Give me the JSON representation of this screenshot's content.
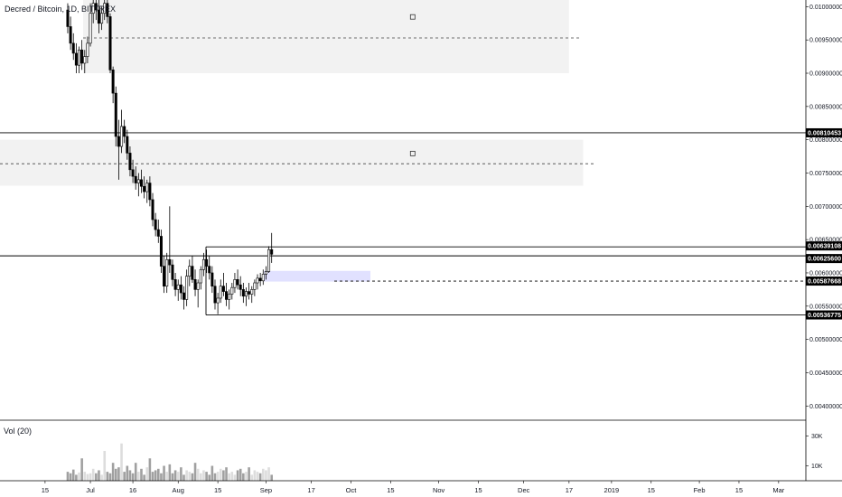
{
  "header": {
    "title": "Decred / Bitcoin, 1D, BITTREX"
  },
  "volume_pane": {
    "label": "Vol (20)"
  },
  "colors": {
    "up": "#ffffff",
    "down": "#000000",
    "zone_fill": "#f2f2f2",
    "box_fill": "#d9d9ff",
    "tag_bg": "#000000"
  },
  "chart_data": {
    "type": "candlestick",
    "symbol": "Decred / Bitcoin",
    "interval": "1D",
    "exchange": "BITTREX",
    "y_axis": {
      "min": 0.0038,
      "max": 0.0101,
      "ticks": [
        "0.01000000",
        "0.00950000",
        "0.00900000",
        "0.00850000",
        "0.00800000",
        "0.00750000",
        "0.00700000",
        "0.00650000",
        "0.00600000",
        "0.00550000",
        "0.00500000",
        "0.00450000",
        "0.00400000"
      ],
      "tick_values": [
        0.01,
        0.0095,
        0.009,
        0.0085,
        0.008,
        0.0075,
        0.007,
        0.0065,
        0.006,
        0.0055,
        0.005,
        0.0045,
        0.004
      ]
    },
    "x_axis": {
      "ticks": [
        "15",
        "Jul",
        "16",
        "Aug",
        "15",
        "Sep",
        "17",
        "Oct",
        "15",
        "Nov",
        "15",
        "Dec",
        "17",
        "2019",
        "15",
        "Feb",
        "15",
        "Mar"
      ],
      "tick_dates": [
        "2018-06-15",
        "2018-07-01",
        "2018-07-16",
        "2018-08-01",
        "2018-08-15",
        "2018-09-01",
        "2018-09-17",
        "2018-10-01",
        "2018-10-15",
        "2018-11-01",
        "2018-11-15",
        "2018-12-01",
        "2018-12-17",
        "2019-01-01",
        "2019-01-15",
        "2019-02-01",
        "2019-02-15",
        "2019-03-01"
      ],
      "first_candle_date": "2018-06-23"
    },
    "price_levels": [
      {
        "value": 0.00810453,
        "label": "0.00810453",
        "style": "solid"
      },
      {
        "value": 0.00639108,
        "label": "0.00639108",
        "style": "solid"
      },
      {
        "value": 0.006256,
        "label": "0.00625600",
        "style": "solid"
      },
      {
        "value": 0.00587668,
        "label": "0.00587668",
        "style": "dashed"
      },
      {
        "value": 0.00536775,
        "label": "0.00536775",
        "style": "solid"
      }
    ],
    "zones": [
      {
        "top": 0.0101,
        "bottom": 0.009,
        "mid": 0.00953,
        "start": "2018-06-23",
        "end": "2018-12-17"
      },
      {
        "top": 0.008,
        "bottom": 0.00731,
        "mid": 0.00764,
        "start": "2018-05-01",
        "end": "2018-12-22"
      }
    ],
    "box": {
      "top": 0.00603,
      "bottom": 0.00587,
      "start": "2018-09-01",
      "end": "2018-10-05"
    },
    "volume_axis": {
      "ticks": [
        "30K",
        "10K"
      ],
      "tick_values": [
        30000,
        10000
      ],
      "max": 40000
    },
    "candles": [
      [
        0.00995,
        0.01005,
        0.0096,
        0.0097
      ],
      [
        0.0097,
        0.00985,
        0.00935,
        0.00945
      ],
      [
        0.00945,
        0.0096,
        0.0092,
        0.0093
      ],
      [
        0.0093,
        0.00945,
        0.009,
        0.00912
      ],
      [
        0.00912,
        0.0094,
        0.009,
        0.00935
      ],
      [
        0.00935,
        0.0095,
        0.00905,
        0.00915
      ],
      [
        0.00915,
        0.00935,
        0.009,
        0.00925
      ],
      [
        0.00925,
        0.00955,
        0.00915,
        0.00945
      ],
      [
        0.00945,
        0.01005,
        0.0094,
        0.0099
      ],
      [
        0.0099,
        0.0102,
        0.00975,
        0.01005
      ],
      [
        0.01005,
        0.0102,
        0.0098,
        0.00995
      ],
      [
        0.00995,
        0.0101,
        0.0096,
        0.00975
      ],
      [
        0.00975,
        0.01,
        0.00965,
        0.0099
      ],
      [
        0.0099,
        0.01015,
        0.0098,
        0.01005
      ],
      [
        0.01005,
        0.0101,
        0.00975,
        0.00985
      ],
      [
        0.00985,
        0.0099,
        0.009,
        0.00905
      ],
      [
        0.00905,
        0.0091,
        0.00855,
        0.0087
      ],
      [
        0.0087,
        0.0088,
        0.0079,
        0.00805
      ],
      [
        0.00805,
        0.0083,
        0.0074,
        0.0079
      ],
      [
        0.0079,
        0.00845,
        0.0078,
        0.0082
      ],
      [
        0.0082,
        0.0083,
        0.00795,
        0.00805
      ],
      [
        0.00805,
        0.00815,
        0.0077,
        0.0078
      ],
      [
        0.0078,
        0.0079,
        0.00745,
        0.00755
      ],
      [
        0.00755,
        0.0077,
        0.00735,
        0.00745
      ],
      [
        0.00745,
        0.0076,
        0.00725,
        0.00735
      ],
      [
        0.00735,
        0.0075,
        0.00715,
        0.0074
      ],
      [
        0.0074,
        0.00755,
        0.0072,
        0.0073
      ],
      [
        0.0073,
        0.00745,
        0.00712,
        0.00722
      ],
      [
        0.00722,
        0.0074,
        0.00705,
        0.00735
      ],
      [
        0.00735,
        0.00745,
        0.007,
        0.0071
      ],
      [
        0.0071,
        0.0072,
        0.0067,
        0.0068
      ],
      [
        0.0068,
        0.0069,
        0.00655,
        0.00665
      ],
      [
        0.00665,
        0.0068,
        0.00645,
        0.00655
      ],
      [
        0.00655,
        0.00665,
        0.006,
        0.0061
      ],
      [
        0.0061,
        0.00625,
        0.0057,
        0.0058
      ],
      [
        0.0058,
        0.0063,
        0.0057,
        0.0062
      ],
      [
        0.0062,
        0.007,
        0.006,
        0.00612
      ],
      [
        0.00612,
        0.0062,
        0.0058,
        0.0059
      ],
      [
        0.0059,
        0.006,
        0.00565,
        0.00575
      ],
      [
        0.00575,
        0.0059,
        0.00558,
        0.00582
      ],
      [
        0.00582,
        0.00595,
        0.0056,
        0.0057
      ],
      [
        0.0057,
        0.0058,
        0.00545,
        0.0056
      ],
      [
        0.0056,
        0.00605,
        0.0055,
        0.00595
      ],
      [
        0.00595,
        0.0062,
        0.0058,
        0.0061
      ],
      [
        0.0061,
        0.00625,
        0.00585,
        0.0059
      ],
      [
        0.0059,
        0.00605,
        0.00565,
        0.00575
      ],
      [
        0.00575,
        0.0059,
        0.00548,
        0.00585
      ],
      [
        0.00585,
        0.0061,
        0.00575,
        0.00605
      ],
      [
        0.00605,
        0.0063,
        0.00595,
        0.0062
      ],
      [
        0.0062,
        0.00635,
        0.006,
        0.0061
      ],
      [
        0.0061,
        0.00625,
        0.0059,
        0.006
      ],
      [
        0.006,
        0.0061,
        0.0057,
        0.0058
      ],
      [
        0.0058,
        0.0059,
        0.00545,
        0.00555
      ],
      [
        0.00555,
        0.0057,
        0.00538,
        0.00562
      ],
      [
        0.00562,
        0.0059,
        0.00555,
        0.0058
      ],
      [
        0.0058,
        0.006,
        0.00565,
        0.00572
      ],
      [
        0.00572,
        0.00585,
        0.0055,
        0.0056
      ],
      [
        0.0056,
        0.00575,
        0.00545,
        0.00568
      ],
      [
        0.00568,
        0.00585,
        0.0056,
        0.00578
      ],
      [
        0.00578,
        0.006,
        0.0057,
        0.0059
      ],
      [
        0.0059,
        0.00605,
        0.00575,
        0.00582
      ],
      [
        0.00582,
        0.00595,
        0.00565,
        0.00575
      ],
      [
        0.00575,
        0.00585,
        0.00555,
        0.00565
      ],
      [
        0.00565,
        0.00578,
        0.0055,
        0.00572
      ],
      [
        0.00572,
        0.00585,
        0.0056,
        0.00568
      ],
      [
        0.00568,
        0.0058,
        0.00555,
        0.00575
      ],
      [
        0.00575,
        0.0059,
        0.00565,
        0.00585
      ],
      [
        0.00585,
        0.00598,
        0.00575,
        0.00592
      ],
      [
        0.00592,
        0.006,
        0.0058,
        0.00588
      ],
      [
        0.00588,
        0.00605,
        0.00582,
        0.00598
      ],
      [
        0.00598,
        0.0061,
        0.0059,
        0.00602
      ],
      [
        0.00602,
        0.0064,
        0.006,
        0.00635
      ],
      [
        0.00635,
        0.0066,
        0.00615,
        0.00628
      ]
    ],
    "volume": [
      6000,
      5000,
      7500,
      4000,
      5500,
      15000,
      6000,
      4500,
      5000,
      8000,
      5000,
      7000,
      4000,
      20000,
      6000,
      5000,
      12000,
      8000,
      9000,
      25000,
      6000,
      10000,
      7000,
      5000,
      12000,
      6000,
      8000,
      4000,
      9000,
      15000,
      6000,
      7000,
      8000,
      5000,
      10000,
      6000,
      11000,
      5000,
      7000,
      6000,
      9000,
      4000,
      7000,
      6000,
      5000,
      12000,
      8000,
      5000,
      7000,
      6000,
      4000,
      10000,
      5000,
      6000,
      8000,
      7000,
      9000,
      5000,
      6000,
      4000,
      7000,
      8000,
      5000,
      6000,
      9000,
      4000,
      7000,
      6000,
      5000,
      8000,
      7000,
      9000,
      4000
    ]
  }
}
